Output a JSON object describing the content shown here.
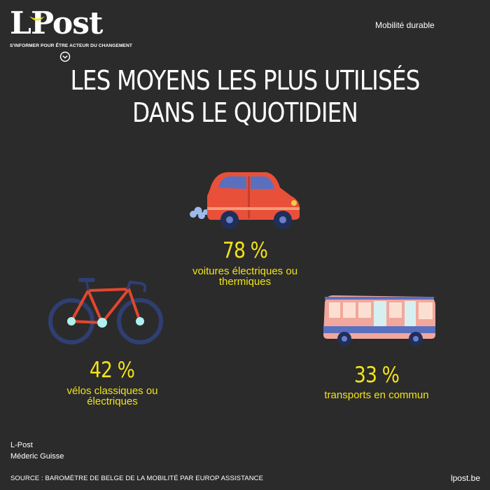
{
  "brand": {
    "logo_text": "LPost",
    "tagline": "S'INFORMER POUR ÊTRE ACTEUR DU CHANGEMENT"
  },
  "section_label": "Mobilité durable",
  "title": {
    "line1": "LES MOYENS LES PLUS UTILISÉS",
    "line2": "DANS LE QUOTIDIEN"
  },
  "stats": {
    "car": {
      "percent": "78 %",
      "label_line1": "voitures électriques ou",
      "label_line2": "thermiques",
      "icon": "car-icon"
    },
    "bike": {
      "percent": "42 %",
      "label_line1": "vélos classiques ou",
      "label_line2": "électriques",
      "icon": "bicycle-icon"
    },
    "bus": {
      "percent": "33 %",
      "label_line1": "transports en commun",
      "icon": "bus-icon"
    }
  },
  "credits": {
    "publisher": "L-Post",
    "author": "Méderic Guisse"
  },
  "source": "SOURCE : BAROMÈTRE DE BELGE DE LA MOBILITÉ PAR EUROP ASSISTANCE",
  "website": "lpost.be",
  "colors": {
    "background": "#2b2b2b",
    "accent_yellow": "#f2e21a",
    "text": "#ffffff"
  }
}
